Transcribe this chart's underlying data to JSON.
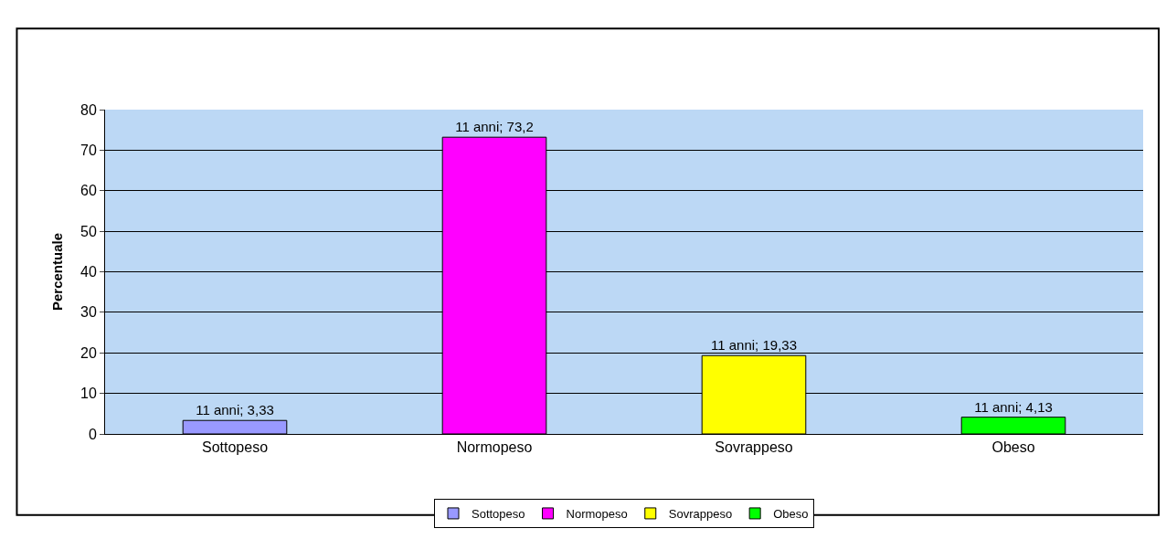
{
  "chart_data": {
    "type": "bar",
    "ylabel": "Percentuale",
    "categories": [
      "Sottopeso",
      "Normopeso",
      "Sovrappeso",
      "Obeso"
    ],
    "series": [
      {
        "name": "Sottopeso",
        "color": "#9999ff",
        "values": [
          3.33,
          null,
          null,
          null
        ],
        "value_labels": [
          "11 anni; 3,33",
          null,
          null,
          null
        ]
      },
      {
        "name": "Normopeso",
        "color": "#ff00ff",
        "values": [
          null,
          73.2,
          null,
          null
        ],
        "value_labels": [
          null,
          "11 anni; 73,2",
          null,
          null
        ]
      },
      {
        "name": "Sovrappeso",
        "color": "#ffff00",
        "values": [
          null,
          null,
          19.33,
          null
        ],
        "value_labels": [
          null,
          null,
          "11 anni; 19,33",
          null
        ]
      },
      {
        "name": "Obeso",
        "color": "#00ff00",
        "values": [
          null,
          null,
          null,
          4.13
        ],
        "value_labels": [
          null,
          null,
          null,
          "11 anni; 4,13"
        ]
      }
    ],
    "ylim": [
      0,
      80
    ],
    "yticks": [
      0,
      10,
      20,
      30,
      40,
      50,
      60,
      70,
      80
    ],
    "grid": "y",
    "legend": "bottom"
  }
}
